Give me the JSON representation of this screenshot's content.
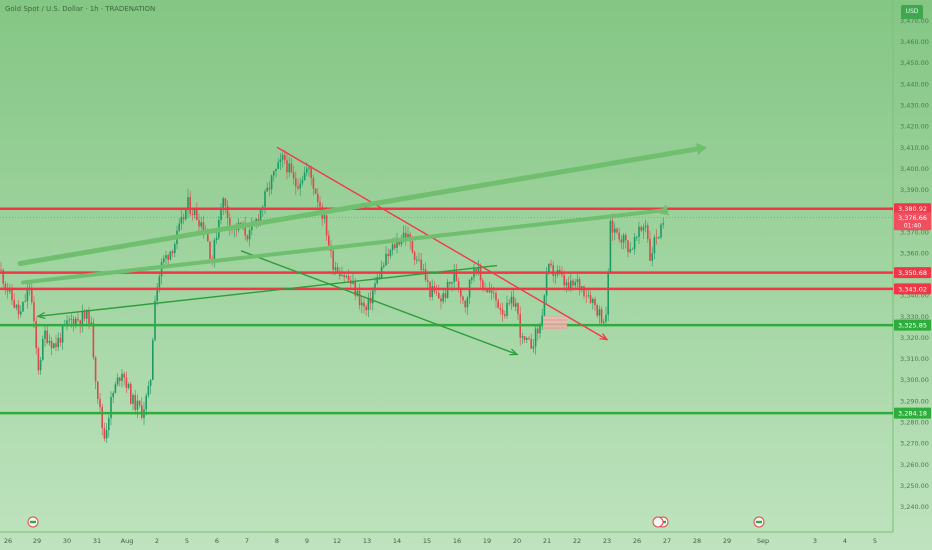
{
  "header": {
    "title": "Gold Spot / U.S. Dollar · 1h · TRADENATION",
    "badge": "USD"
  },
  "colors": {
    "background_top": "#84c684",
    "background_bottom": "#bfe3bf",
    "candle_up": "#1d9a63",
    "candle_down": "#e0474c",
    "resistance_line": "#f23645",
    "support_line": "#2fad3c",
    "channel_red": "#f2394a",
    "channel_green": "#2e9e3a",
    "projection_arrow": "#6fbf6f",
    "price_tag_current": "#ef4f5f",
    "shaded_zone": "#e9a4a0"
  },
  "chart_data": {
    "type": "candlestick",
    "instrument": "Gold Spot / U.S. Dollar",
    "timeframe": "1h",
    "x_tick_labels": [
      "26",
      "29",
      "30",
      "31",
      "Aug",
      "2",
      "5",
      "6",
      "7",
      "8",
      "9",
      "12",
      "13",
      "14",
      "15",
      "16",
      "19",
      "20",
      "21",
      "22",
      "23",
      "26",
      "27",
      "28",
      "29",
      "Sep",
      "3",
      "4",
      "5"
    ],
    "y_ticks": [
      3470,
      3460,
      3450,
      3440,
      3430,
      3420,
      3410,
      3400,
      3390,
      3380,
      3370,
      3360,
      3350,
      3340,
      3330,
      3320,
      3310,
      3300,
      3290,
      3280,
      3270,
      3260,
      3250,
      3240
    ],
    "y_tick_labels": [
      "3,470.00",
      "3,460.00",
      "3,450.00",
      "3,440.00",
      "3,430.00",
      "3,420.00",
      "3,410.00",
      "3,400.00",
      "3,390.00",
      "3,380.00",
      "3,370.00",
      "3,360.00",
      "3,350.00",
      "3,340.00",
      "3,330.00",
      "3,320.00",
      "3,310.00",
      "3,300.00",
      "3,290.00",
      "3,280.00",
      "3,270.00",
      "3,260.00",
      "3,250.00",
      "3,240.00"
    ],
    "ylim": [
      3236,
      3474
    ],
    "horizontal_levels": [
      {
        "value": 3380.92,
        "label": "3,380.92",
        "kind": "resistance"
      },
      {
        "value": 3350.68,
        "label": "3,350.68",
        "kind": "resistance"
      },
      {
        "value": 3343.02,
        "label": "3,343.02",
        "kind": "resistance"
      },
      {
        "value": 3325.85,
        "label": "3,325.85",
        "kind": "support"
      },
      {
        "value": 3284.18,
        "label": "3,284.18",
        "kind": "support"
      }
    ],
    "current_price": {
      "value": 3376.66,
      "label": "3,376.66",
      "countdown": "01:40"
    },
    "annotations": [
      {
        "kind": "descending_channel_upper",
        "from": {
          "x": "8",
          "y": 3410
        },
        "to": {
          "x": "23",
          "y": 3319
        }
      },
      {
        "kind": "descending_channel_lower",
        "from": {
          "x": "7",
          "y": 3361
        },
        "to": {
          "x": "20",
          "y": 3312
        }
      },
      {
        "kind": "wedge_line",
        "from": {
          "x": "21",
          "y": 3354
        },
        "to": {
          "x": "26",
          "y": 3330
        }
      },
      {
        "kind": "projection_arrow",
        "from": {
          "x": "26",
          "y": 3355
        },
        "to": {
          "x": "27",
          "y": 3410
        }
      }
    ],
    "event_markers": [
      {
        "x": "27",
        "icon": "flag-icon"
      },
      {
        "x": "29",
        "icon": "flag-icon"
      },
      {
        "x": "Sep",
        "icon": "flag-icon"
      }
    ],
    "grid": false
  }
}
